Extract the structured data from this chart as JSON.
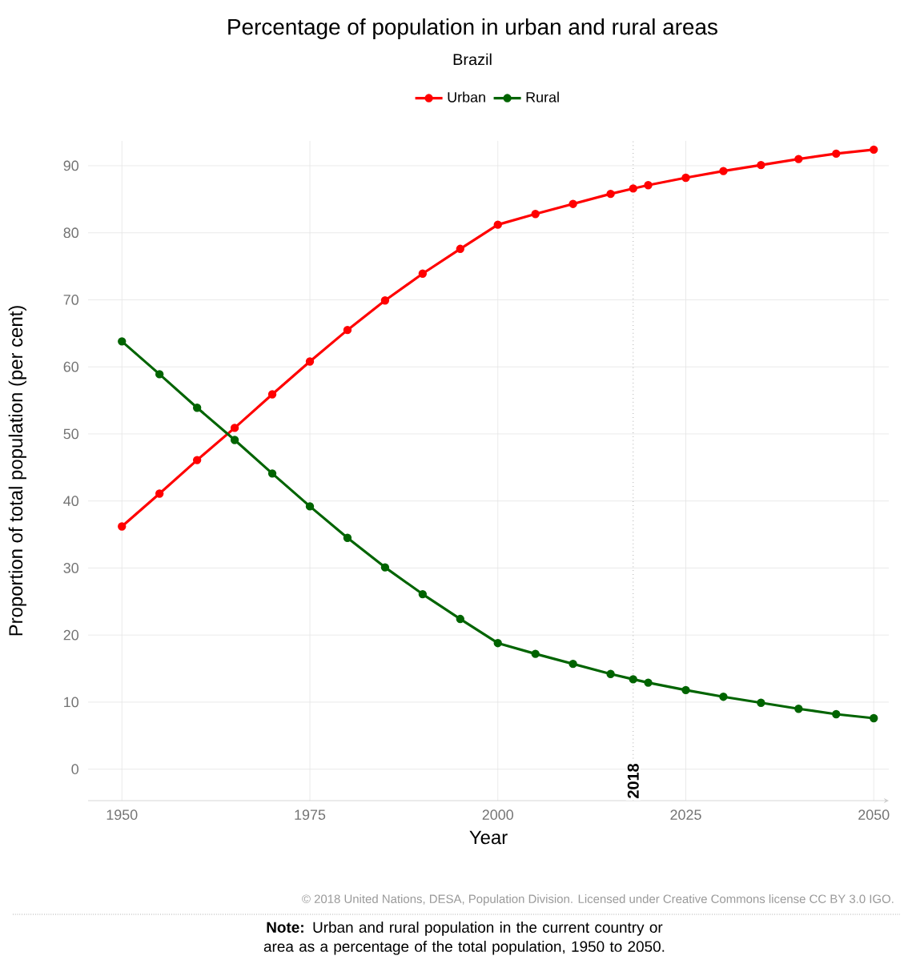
{
  "chart_data": {
    "type": "line",
    "title": "Percentage of population in urban and rural areas",
    "subtitle": "Brazil",
    "xlabel": "Year",
    "ylabel": "Proportion of total population (per cent)",
    "x": [
      1950,
      1955,
      1960,
      1965,
      1970,
      1975,
      1980,
      1985,
      1990,
      1995,
      2000,
      2005,
      2010,
      2015,
      2018,
      2020,
      2025,
      2030,
      2035,
      2040,
      2045,
      2050
    ],
    "series": [
      {
        "name": "Urban",
        "color": "#ff0000",
        "values": [
          36.2,
          41.1,
          46.1,
          50.9,
          55.9,
          60.8,
          65.5,
          69.9,
          73.9,
          77.6,
          81.2,
          82.8,
          84.3,
          85.8,
          86.6,
          87.1,
          88.2,
          89.2,
          90.1,
          91.0,
          91.8,
          92.4
        ]
      },
      {
        "name": "Rural",
        "color": "#006400",
        "values": [
          63.8,
          58.9,
          53.9,
          49.1,
          44.1,
          39.2,
          34.5,
          30.1,
          26.1,
          22.4,
          18.8,
          17.2,
          15.7,
          14.2,
          13.4,
          12.9,
          11.8,
          10.8,
          9.9,
          9.0,
          8.2,
          7.6
        ]
      }
    ],
    "xlim": [
      1945.5,
      2052
    ],
    "ylim": [
      -4.7,
      93.7
    ],
    "xticks": [
      1950,
      1975,
      2000,
      2025,
      2050
    ],
    "yticks": [
      0,
      10,
      20,
      30,
      40,
      50,
      60,
      70,
      80,
      90
    ],
    "ref_lines": [
      {
        "axis": "x",
        "value": 2018,
        "label": "2018",
        "line_style": "dotted"
      }
    ],
    "annotations": [
      "© 2018 United Nations, DESA, Population Division. Licensed under Creative Commons license CC BY 3.0 IGO.",
      "**Note:** Urban and rural population in the current country or area as a percentage of the total population, 1950 to 2050."
    ],
    "grid": true,
    "legend": "top",
    "marker": "circle",
    "line_style": "solid"
  }
}
